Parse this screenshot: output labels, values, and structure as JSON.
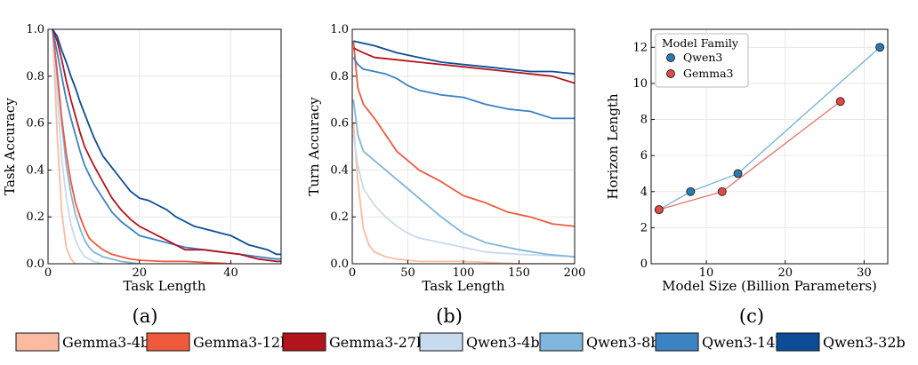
{
  "panels": {
    "a": {
      "label": "(a)"
    },
    "b": {
      "label": "(b)"
    },
    "c": {
      "label": "(c)"
    }
  },
  "legend": {
    "items": [
      {
        "name": "Gemma3-4b",
        "color": "#fcbba1"
      },
      {
        "name": "Gemma3-12b",
        "color": "#ef5a3c"
      },
      {
        "name": "Gemma3-27b",
        "color": "#b3141c"
      },
      {
        "name": "Qwen3-4b",
        "color": "#c6dbef"
      },
      {
        "name": "Qwen3-8b",
        "color": "#7fb6dc"
      },
      {
        "name": "Qwen3-14b",
        "color": "#3b83c3"
      },
      {
        "name": "Qwen3-32b",
        "color": "#0b4d96"
      }
    ]
  },
  "chart_data": [
    {
      "id": "a",
      "type": "line",
      "xlabel": "Task Length",
      "ylabel": "Task Accuracy",
      "xlim": [
        0,
        51
      ],
      "ylim": [
        0,
        1.0
      ],
      "xticks": [
        0,
        20,
        40
      ],
      "yticks": [
        0.0,
        0.2,
        0.4,
        0.6,
        0.8,
        1.0
      ],
      "grid": true,
      "series": [
        {
          "name": "Gemma3-4b",
          "color": "#fcbba1",
          "x": [
            1,
            2,
            3,
            4,
            5,
            6
          ],
          "y": [
            1.0,
            0.55,
            0.22,
            0.07,
            0.02,
            0.0
          ]
        },
        {
          "name": "Qwen3-4b",
          "color": "#c6dbef",
          "x": [
            1,
            2,
            3,
            4,
            5,
            6,
            7,
            8,
            9,
            10,
            11,
            12
          ],
          "y": [
            1.0,
            0.72,
            0.45,
            0.28,
            0.17,
            0.1,
            0.06,
            0.03,
            0.02,
            0.01,
            0.005,
            0.0
          ]
        },
        {
          "name": "Qwen3-8b",
          "color": "#7fb6dc",
          "x": [
            1,
            2,
            3,
            4,
            5,
            6,
            7,
            8,
            9,
            10,
            12,
            14,
            16,
            18,
            20
          ],
          "y": [
            1.0,
            0.8,
            0.6,
            0.42,
            0.3,
            0.21,
            0.15,
            0.1,
            0.07,
            0.05,
            0.03,
            0.02,
            0.01,
            0.005,
            0.0
          ]
        },
        {
          "name": "Gemma3-12b",
          "color": "#ef5a3c",
          "x": [
            1,
            2,
            3,
            4,
            5,
            6,
            7,
            8,
            9,
            10,
            12,
            14,
            16,
            18,
            20,
            25,
            30,
            35,
            40
          ],
          "y": [
            1.0,
            0.82,
            0.62,
            0.47,
            0.35,
            0.26,
            0.2,
            0.15,
            0.11,
            0.09,
            0.06,
            0.04,
            0.03,
            0.02,
            0.015,
            0.01,
            0.01,
            0.005,
            0.0
          ]
        },
        {
          "name": "Qwen3-14b",
          "color": "#3b83c3",
          "x": [
            1,
            2,
            3,
            4,
            5,
            6,
            7,
            8,
            9,
            10,
            12,
            14,
            16,
            18,
            20,
            22,
            24,
            26,
            28,
            30,
            34,
            38,
            42,
            46,
            50,
            51
          ],
          "y": [
            1.0,
            0.9,
            0.8,
            0.7,
            0.62,
            0.55,
            0.48,
            0.42,
            0.38,
            0.34,
            0.28,
            0.22,
            0.18,
            0.15,
            0.12,
            0.11,
            0.1,
            0.09,
            0.08,
            0.07,
            0.06,
            0.05,
            0.04,
            0.03,
            0.02,
            0.02
          ]
        },
        {
          "name": "Gemma3-27b",
          "color": "#b3141c",
          "x": [
            1,
            2,
            3,
            4,
            5,
            6,
            7,
            8,
            9,
            10,
            12,
            14,
            16,
            18,
            20,
            22,
            24,
            26,
            28,
            30,
            34,
            38,
            42,
            46,
            50,
            51
          ],
          "y": [
            1.0,
            0.95,
            0.87,
            0.78,
            0.7,
            0.63,
            0.56,
            0.5,
            0.46,
            0.42,
            0.35,
            0.28,
            0.23,
            0.19,
            0.16,
            0.14,
            0.12,
            0.1,
            0.08,
            0.06,
            0.06,
            0.05,
            0.04,
            0.02,
            0.01,
            0.01
          ]
        },
        {
          "name": "Qwen3-32b",
          "color": "#0b4d96",
          "x": [
            1,
            2,
            3,
            4,
            5,
            6,
            7,
            8,
            9,
            10,
            12,
            14,
            16,
            18,
            20,
            22,
            24,
            26,
            28,
            30,
            32,
            34,
            36,
            38,
            40,
            42,
            44,
            46,
            48,
            50,
            51
          ],
          "y": [
            1.0,
            0.97,
            0.91,
            0.86,
            0.8,
            0.75,
            0.69,
            0.64,
            0.59,
            0.54,
            0.46,
            0.41,
            0.36,
            0.31,
            0.28,
            0.27,
            0.25,
            0.23,
            0.2,
            0.18,
            0.16,
            0.15,
            0.14,
            0.13,
            0.12,
            0.1,
            0.08,
            0.07,
            0.06,
            0.04,
            0.04
          ]
        }
      ]
    },
    {
      "id": "b",
      "type": "line",
      "xlabel": "Task Length",
      "ylabel": "Turn Accuracy",
      "xlim": [
        0,
        200
      ],
      "ylim": [
        0,
        1.0
      ],
      "xticks": [
        0,
        50,
        100,
        150,
        200
      ],
      "yticks": [
        0.0,
        0.2,
        0.4,
        0.6,
        0.8,
        1.0
      ],
      "grid": true,
      "series": [
        {
          "name": "Gemma3-4b",
          "color": "#fcbba1",
          "x": [
            1,
            5,
            10,
            15,
            20,
            30,
            40,
            60,
            100,
            150,
            200
          ],
          "y": [
            0.6,
            0.35,
            0.15,
            0.08,
            0.05,
            0.03,
            0.02,
            0.01,
            0.01,
            0.0,
            0.0
          ]
        },
        {
          "name": "Qwen3-4b",
          "color": "#c6dbef",
          "x": [
            1,
            5,
            10,
            20,
            30,
            40,
            50,
            60,
            80,
            100,
            120,
            150,
            200
          ],
          "y": [
            0.55,
            0.42,
            0.32,
            0.25,
            0.2,
            0.16,
            0.13,
            0.11,
            0.09,
            0.07,
            0.05,
            0.04,
            0.03
          ]
        },
        {
          "name": "Qwen3-8b",
          "color": "#7fb6dc",
          "x": [
            1,
            5,
            10,
            20,
            30,
            40,
            50,
            60,
            80,
            100,
            120,
            150,
            175,
            200
          ],
          "y": [
            0.7,
            0.55,
            0.48,
            0.44,
            0.4,
            0.36,
            0.32,
            0.28,
            0.2,
            0.13,
            0.09,
            0.06,
            0.04,
            0.03
          ]
        },
        {
          "name": "Gemma3-12b",
          "color": "#ef5a3c",
          "x": [
            1,
            5,
            10,
            20,
            30,
            40,
            50,
            60,
            80,
            100,
            120,
            140,
            160,
            180,
            200
          ],
          "y": [
            0.95,
            0.75,
            0.68,
            0.62,
            0.55,
            0.48,
            0.44,
            0.4,
            0.35,
            0.29,
            0.26,
            0.22,
            0.2,
            0.17,
            0.16
          ]
        },
        {
          "name": "Qwen3-14b",
          "color": "#3b83c3",
          "x": [
            1,
            5,
            10,
            20,
            30,
            40,
            50,
            60,
            80,
            100,
            120,
            140,
            160,
            180,
            200
          ],
          "y": [
            0.88,
            0.85,
            0.83,
            0.82,
            0.81,
            0.79,
            0.76,
            0.74,
            0.72,
            0.71,
            0.68,
            0.66,
            0.65,
            0.62,
            0.62
          ]
        },
        {
          "name": "Gemma3-27b",
          "color": "#b3141c",
          "x": [
            1,
            10,
            20,
            40,
            60,
            80,
            100,
            120,
            140,
            160,
            180,
            200
          ],
          "y": [
            0.92,
            0.9,
            0.88,
            0.87,
            0.86,
            0.85,
            0.84,
            0.83,
            0.82,
            0.81,
            0.8,
            0.77
          ]
        },
        {
          "name": "Qwen3-32b",
          "color": "#0b4d96",
          "x": [
            1,
            10,
            20,
            40,
            60,
            80,
            100,
            120,
            140,
            160,
            180,
            200
          ],
          "y": [
            0.95,
            0.94,
            0.93,
            0.9,
            0.88,
            0.86,
            0.85,
            0.84,
            0.83,
            0.82,
            0.82,
            0.81
          ]
        }
      ]
    },
    {
      "id": "c",
      "type": "scatter",
      "xlabel": "Model Size (Billion Parameters)",
      "ylabel": "Horizon Length",
      "xlim": [
        3,
        33
      ],
      "ylim": [
        0,
        13
      ],
      "xticks": [
        10,
        20,
        30
      ],
      "yticks": [
        0,
        2,
        4,
        6,
        8,
        10,
        12
      ],
      "grid": true,
      "legend": {
        "title": "Model Family",
        "placement": "top-left"
      },
      "series": [
        {
          "name": "Qwen3",
          "color": "#2a7ab0",
          "line_color": "#6aaad6",
          "x": [
            4,
            8,
            14,
            32
          ],
          "y": [
            3,
            4,
            5,
            12
          ]
        },
        {
          "name": "Gemma3",
          "color": "#e04a40",
          "line_color": "#e86a5e",
          "x": [
            4,
            12,
            27
          ],
          "y": [
            3,
            4,
            9
          ]
        }
      ]
    }
  ]
}
